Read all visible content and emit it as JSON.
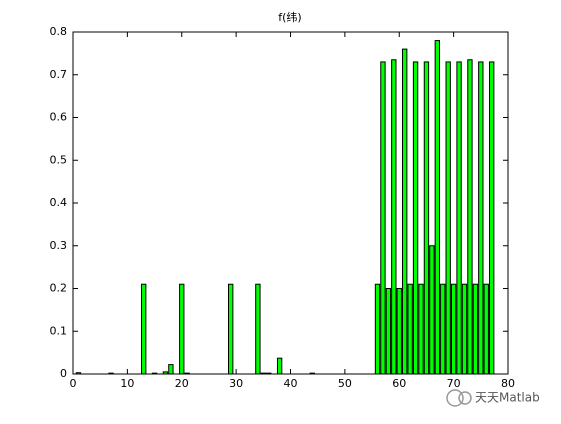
{
  "chart_data": {
    "type": "bar",
    "title": "f(纬)",
    "x": [
      1,
      2,
      3,
      4,
      5,
      6,
      7,
      8,
      9,
      10,
      11,
      12,
      13,
      14,
      15,
      16,
      17,
      18,
      19,
      20,
      21,
      22,
      23,
      24,
      25,
      26,
      27,
      28,
      29,
      30,
      31,
      32,
      33,
      34,
      35,
      36,
      37,
      38,
      39,
      40,
      41,
      42,
      43,
      44,
      45,
      46,
      47,
      48,
      49,
      50,
      51,
      52,
      53,
      54,
      55,
      56,
      57,
      58,
      59,
      60,
      61,
      62,
      63,
      64,
      65,
      66,
      67,
      68,
      69,
      70,
      71,
      72,
      73,
      74,
      75,
      76,
      77
    ],
    "values": [
      0.003,
      0,
      0,
      0,
      0,
      0,
      0.002,
      0,
      0,
      0,
      0,
      0,
      0.21,
      0,
      0.002,
      0,
      0.005,
      0.022,
      0,
      0.21,
      0.002,
      0,
      0,
      0,
      0,
      0,
      0,
      0,
      0.21,
      0,
      0,
      0,
      0,
      0.21,
      0.002,
      0.002,
      0,
      0.037,
      0,
      0,
      0,
      0,
      0,
      0.002,
      0,
      0,
      0,
      0,
      0,
      0,
      0,
      0,
      0,
      0,
      0,
      0.21,
      0.73,
      0.2,
      0.735,
      0.2,
      0.76,
      0.21,
      0.73,
      0.21,
      0.73,
      0.3,
      0.78,
      0.21,
      0.73,
      0.21,
      0.73,
      0.21,
      0.735,
      0.21,
      0.73,
      0.21,
      0.73
    ],
    "color": "#00ff00",
    "xlim": [
      0,
      80
    ],
    "xticks": [
      0,
      10,
      20,
      30,
      40,
      50,
      60,
      70,
      80
    ],
    "ylim": [
      0,
      0.8
    ],
    "yticks": [
      0,
      0.1,
      0.2,
      0.3,
      0.4,
      0.5,
      0.6,
      0.7,
      0.8
    ],
    "watermark": "天天Matlab"
  }
}
